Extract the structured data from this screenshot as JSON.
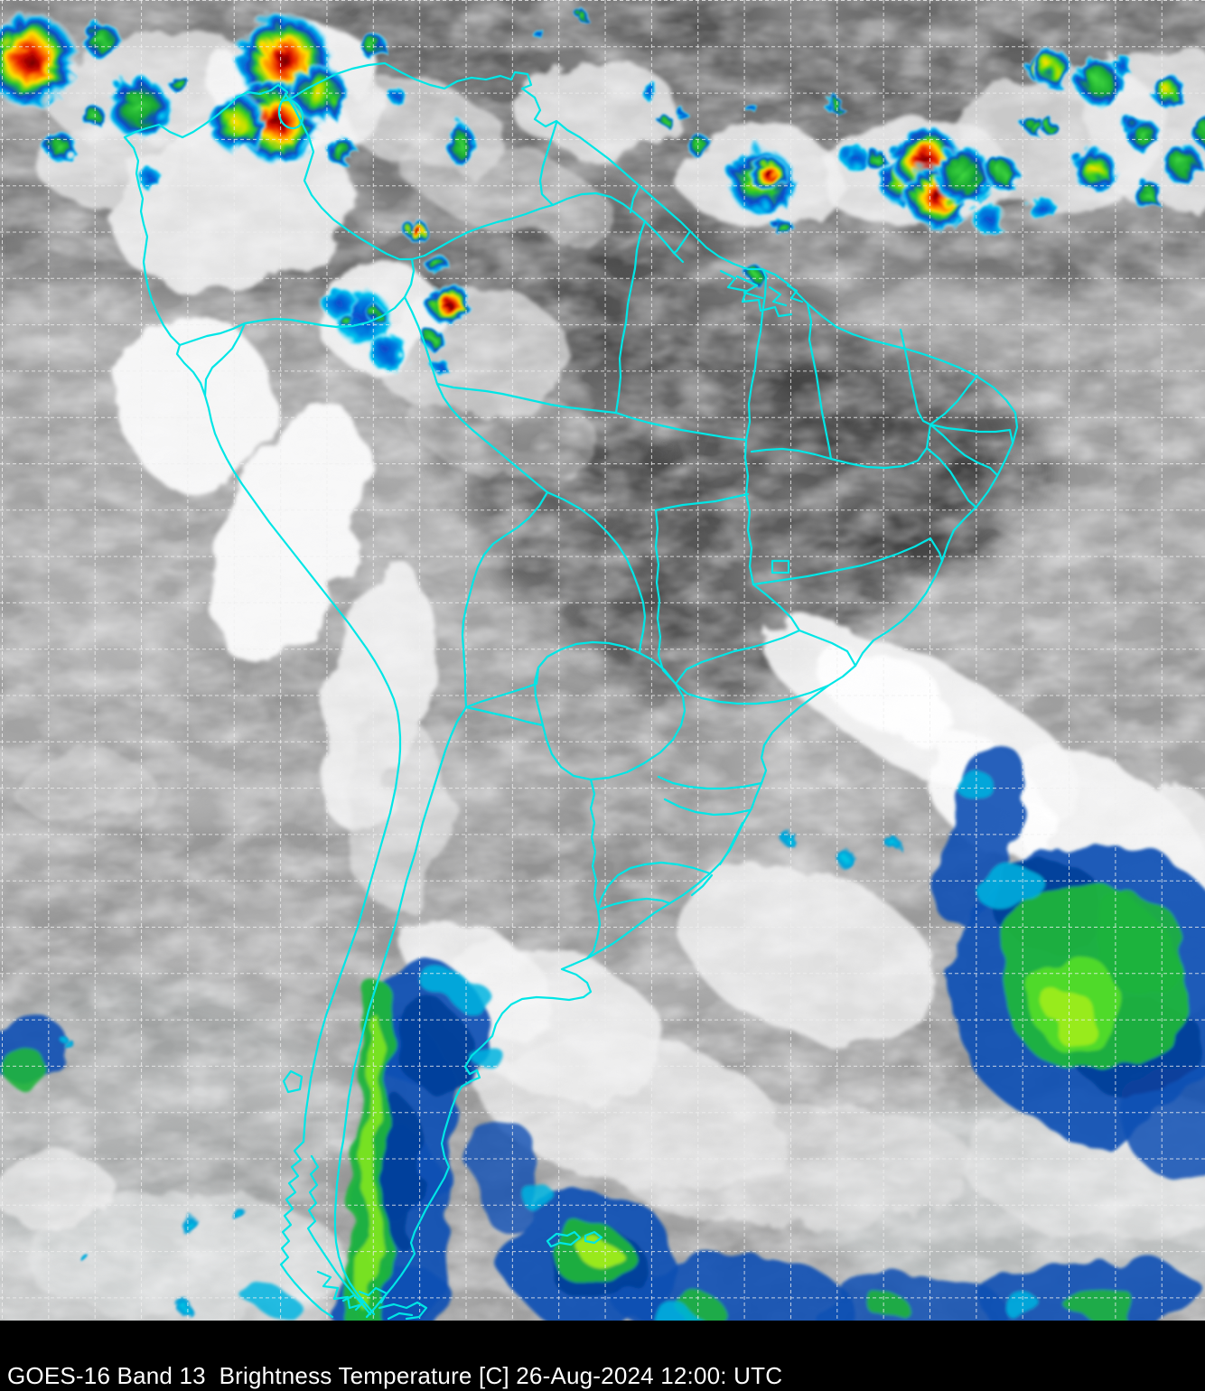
{
  "caption": {
    "text": "GOES-16 Band 13  Brightness Temperature [C] 26-Aug-2024 12:00: UTC",
    "satellite": "GOES-16",
    "band": "Band 13",
    "product": "Brightness Temperature",
    "units": "C",
    "date": "26-Aug-2024",
    "time": "12:00",
    "timezone": "UTC"
  },
  "map": {
    "region_shown": "South America",
    "overlay": {
      "border_color": "#00e6e6",
      "grid_color": "#efefef",
      "grid_style": "dashed",
      "caption_background": "#000000",
      "caption_text_color": "#ffffff"
    },
    "ir_enhancement_palette": {
      "warm_to_cold": [
        "#8f8f8f",
        "#f5f5f5",
        "#00c8f0",
        "#0a50b4",
        "#28c828",
        "#a0ec1e",
        "#ffe000",
        "#ff7a00",
        "#e01800",
        "#6e0000"
      ]
    }
  }
}
